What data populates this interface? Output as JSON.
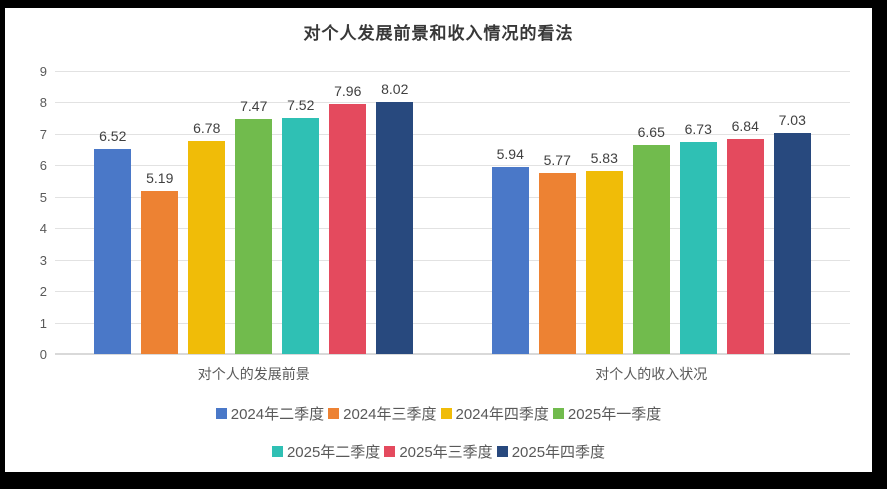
{
  "title": "对个人发展前景和收入情况的看法",
  "chart_data": {
    "type": "bar",
    "title": "对个人发展前景和收入情况的看法",
    "categories": [
      "对个人的发展前景",
      "对个人的收入状况"
    ],
    "series": [
      {
        "name": "2024年二季度",
        "color": "#4a78c8",
        "values": [
          6.52,
          5.94
        ]
      },
      {
        "name": "2024年三季度",
        "color": "#ed8233",
        "values": [
          5.19,
          5.77
        ]
      },
      {
        "name": "2024年四季度",
        "color": "#f0bc08",
        "values": [
          6.78,
          5.83
        ]
      },
      {
        "name": "2025年一季度",
        "color": "#71bb4d",
        "values": [
          7.47,
          6.65
        ]
      },
      {
        "name": "2025年二季度",
        "color": "#2fc0b4",
        "values": [
          7.52,
          6.73
        ]
      },
      {
        "name": "2025年三季度",
        "color": "#e44a5e",
        "values": [
          7.96,
          6.84
        ]
      },
      {
        "name": "2025年四季度",
        "color": "#28497e",
        "values": [
          8.02,
          7.03
        ]
      }
    ],
    "ylim": [
      0,
      9
    ],
    "ytick_step": 1,
    "yticks": [
      0,
      1,
      2,
      3,
      4,
      5,
      6,
      7,
      8,
      9
    ],
    "grid": true,
    "legend_position": "bottom",
    "legend_rows": [
      4,
      3
    ]
  }
}
